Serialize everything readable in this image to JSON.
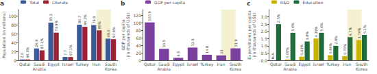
{
  "chart_data": [
    {
      "type": "bar",
      "title": "a",
      "categories": [
        "Qatar",
        "Saudi\nArabia",
        "Egypt",
        "Israel",
        "Turkey",
        "Iran",
        "South\nKorea"
      ],
      "y_label": "Population (in millions)",
      "ylim": [
        0,
        115
      ],
      "yticks": [
        0,
        20,
        40,
        60,
        80,
        100
      ],
      "grid": false,
      "legend": "upper left",
      "data_labels": true,
      "highlight": {
        "from": "Iran",
        "to": "South\nKorea",
        "color": "#f5f0d0"
      },
      "series": [
        {
          "name": "Total",
          "color": "#3b5998",
          "values": [
            2.0,
            26.9,
            85.3,
            7.7,
            80.7,
            79.9,
            49.0
          ],
          "value_labels": [
            "2.0",
            "26.9",
            "85.3",
            "7.7",
            "80.7",
            "79.9",
            "49.0"
          ]
        },
        {
          "name": "Literate",
          "color": "#9b2335",
          "values": [
            1.9,
            22.7,
            62.7,
            7.5,
            76.0,
            67.9,
            47.9
          ],
          "pct_labels": [
            "96.3%",
            "87.2%",
            "73.9%",
            "97.1%",
            "94.1%",
            "85%",
            "97.9%"
          ]
        }
      ]
    },
    {
      "type": "bar",
      "title": "b",
      "categories": [
        "Qatar",
        "Saudi\nArabia",
        "Egypt",
        "Israel",
        "Turkey",
        "Iran",
        "South\nKorea"
      ],
      "y_label": "GDP per capita\n(in thousands of US$)",
      "ylim": [
        0,
        135
      ],
      "yticks": [
        0,
        20,
        40,
        60,
        80,
        100,
        120
      ],
      "grid": false,
      "legend": "upper left",
      "data_labels": true,
      "highlight": {
        "from": "Iran",
        "to": "South\nKorea",
        "color": "#f5f0d0"
      },
      "series": [
        {
          "name": "GDP per capita",
          "color": "#7b3f9e",
          "values": [
            100.9,
            30.5,
            6.5,
            33.9,
            14.8,
            13,
            31.9
          ]
        }
      ]
    },
    {
      "type": "bar",
      "title": "c",
      "categories": [
        "Qatar",
        "Saudi\nArabia",
        "Egypt",
        "Israel",
        "Turkey",
        "Iran",
        "South\nKorea"
      ],
      "y_label": "Expenditures per capita\n(in thousands of US$)",
      "ylim": [
        0,
        3.5
      ],
      "yticks": [
        {
          "value": 0,
          "label": "0.0"
        },
        0.5,
        {
          "value": 1,
          "label": "1.0"
        },
        1.5,
        {
          "value": 2,
          "label": "2.0"
        },
        2.5,
        {
          "value": 3,
          "label": "3.0"
        }
      ],
      "grid": false,
      "legend": "upper left",
      "data_labels": true,
      "highlight": {
        "from": "Iran",
        "to": "South\nKorea",
        "color": "#f5f0d0"
      },
      "series": [
        {
          "name": "R&D",
          "color": "#c8b400",
          "values": [
            0.0,
            0.05,
            0.25,
            1.5,
            0.35,
            0.29,
            1.4
          ],
          "pct_labels": [
            "N.A.",
            "0.08%",
            "0.43%",
            "4.39%",
            "0.84%",
            "0.70%",
            "3.74%"
          ]
        },
        {
          "name": "Education",
          "color": "#1f6b3a",
          "values": [
            2.5,
            1.9,
            1.3,
            1.9,
            1.0,
            1.6,
            1.75
          ],
          "pct_labels": [
            "2.5%",
            "5.6%",
            "3.8%",
            "5.6%",
            "2.9%",
            "4.7%",
            "5.1%"
          ]
        }
      ]
    }
  ]
}
